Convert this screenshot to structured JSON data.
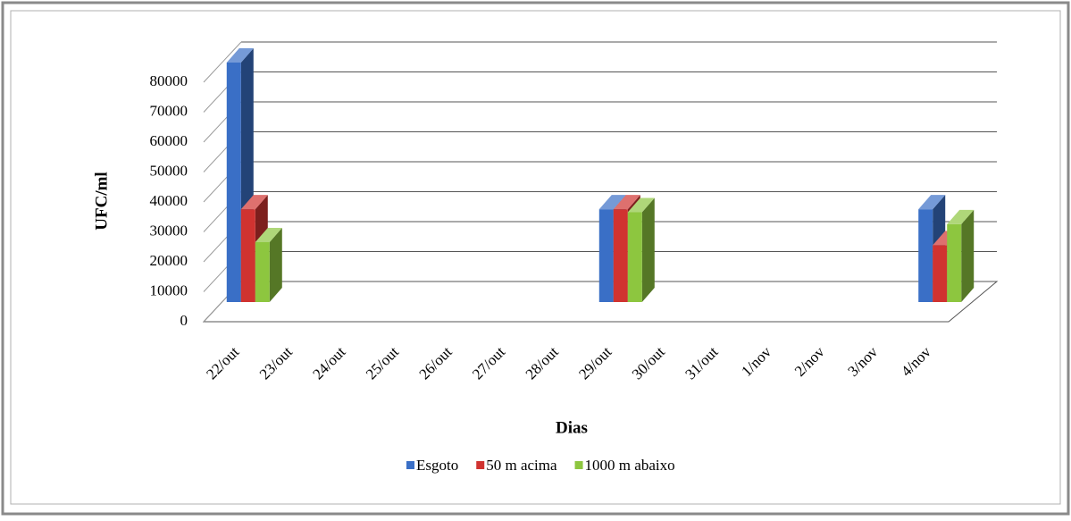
{
  "chart_data": {
    "type": "bar3d",
    "y_label": "UFC/ml",
    "x_label": "Dias",
    "categories": [
      "22/out",
      "23/out",
      "24/out",
      "25/out",
      "26/out",
      "27/out",
      "28/out",
      "29/out",
      "30/out",
      "31/out",
      "1/nov",
      "2/nov",
      "3/nov",
      "4/nov"
    ],
    "series": [
      {
        "name": "Esgoto",
        "color": "#3a6fc6",
        "values": [
          80000,
          null,
          null,
          null,
          null,
          null,
          null,
          31000,
          null,
          null,
          null,
          null,
          null,
          31000
        ]
      },
      {
        "name": "50 m acima",
        "color": "#d03330",
        "values": [
          31000,
          null,
          null,
          null,
          null,
          null,
          null,
          31000,
          null,
          null,
          null,
          null,
          null,
          19000
        ]
      },
      {
        "name": "1000 m abaixo",
        "color": "#8dc63f",
        "values": [
          20000,
          null,
          null,
          null,
          null,
          null,
          null,
          30000,
          null,
          null,
          null,
          null,
          null,
          26000
        ]
      }
    ],
    "ylim": [
      0,
      80000
    ],
    "yticks": [
      0,
      10000,
      20000,
      30000,
      40000,
      50000,
      60000,
      70000,
      80000
    ],
    "grid": true
  }
}
